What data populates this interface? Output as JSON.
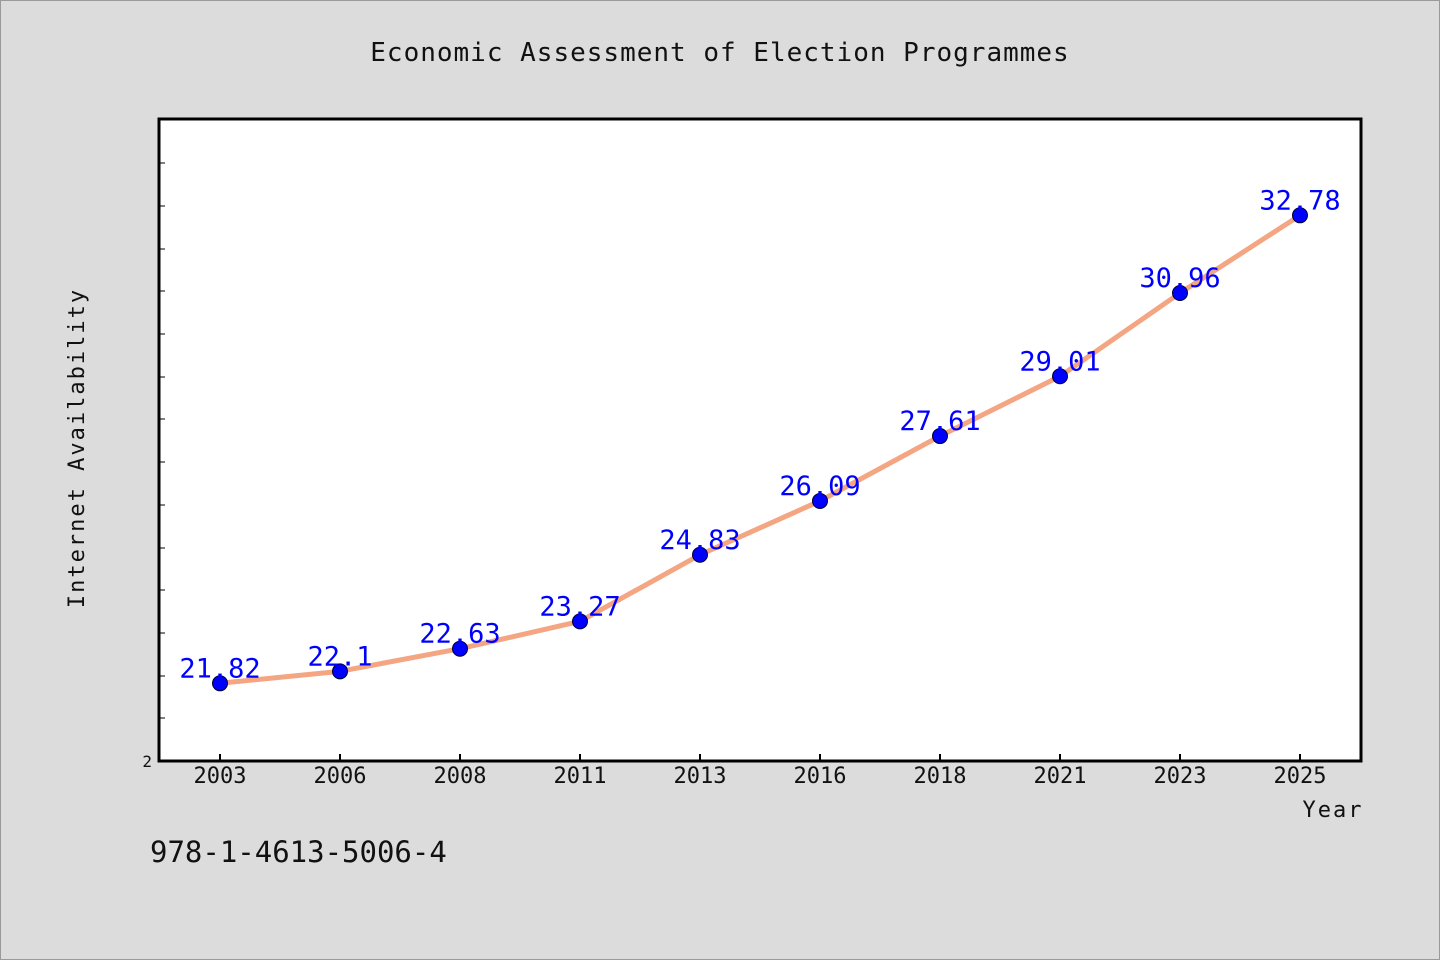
{
  "chart_data": {
    "type": "line",
    "title": "Economic Assessment of Election Programmes",
    "xlabel": "Year",
    "ylabel": "Internet Availability",
    "categories": [
      "2003",
      "2006",
      "2008",
      "2011",
      "2013",
      "2016",
      "2018",
      "2021",
      "2023",
      "2025"
    ],
    "values": [
      21.82,
      22.1,
      22.63,
      23.27,
      24.83,
      26.09,
      27.61,
      29.01,
      30.96,
      32.78
    ],
    "y_origin_label": "2",
    "ylim": [
      20,
      35
    ],
    "grid": false,
    "line_color": "#f4a582",
    "marker_color": "#0000ff",
    "label_color": "#0000ff",
    "background_color": "#dcdcdc",
    "plot_background": "#ffffff"
  },
  "footer_code": "978-1-4613-5006-4"
}
